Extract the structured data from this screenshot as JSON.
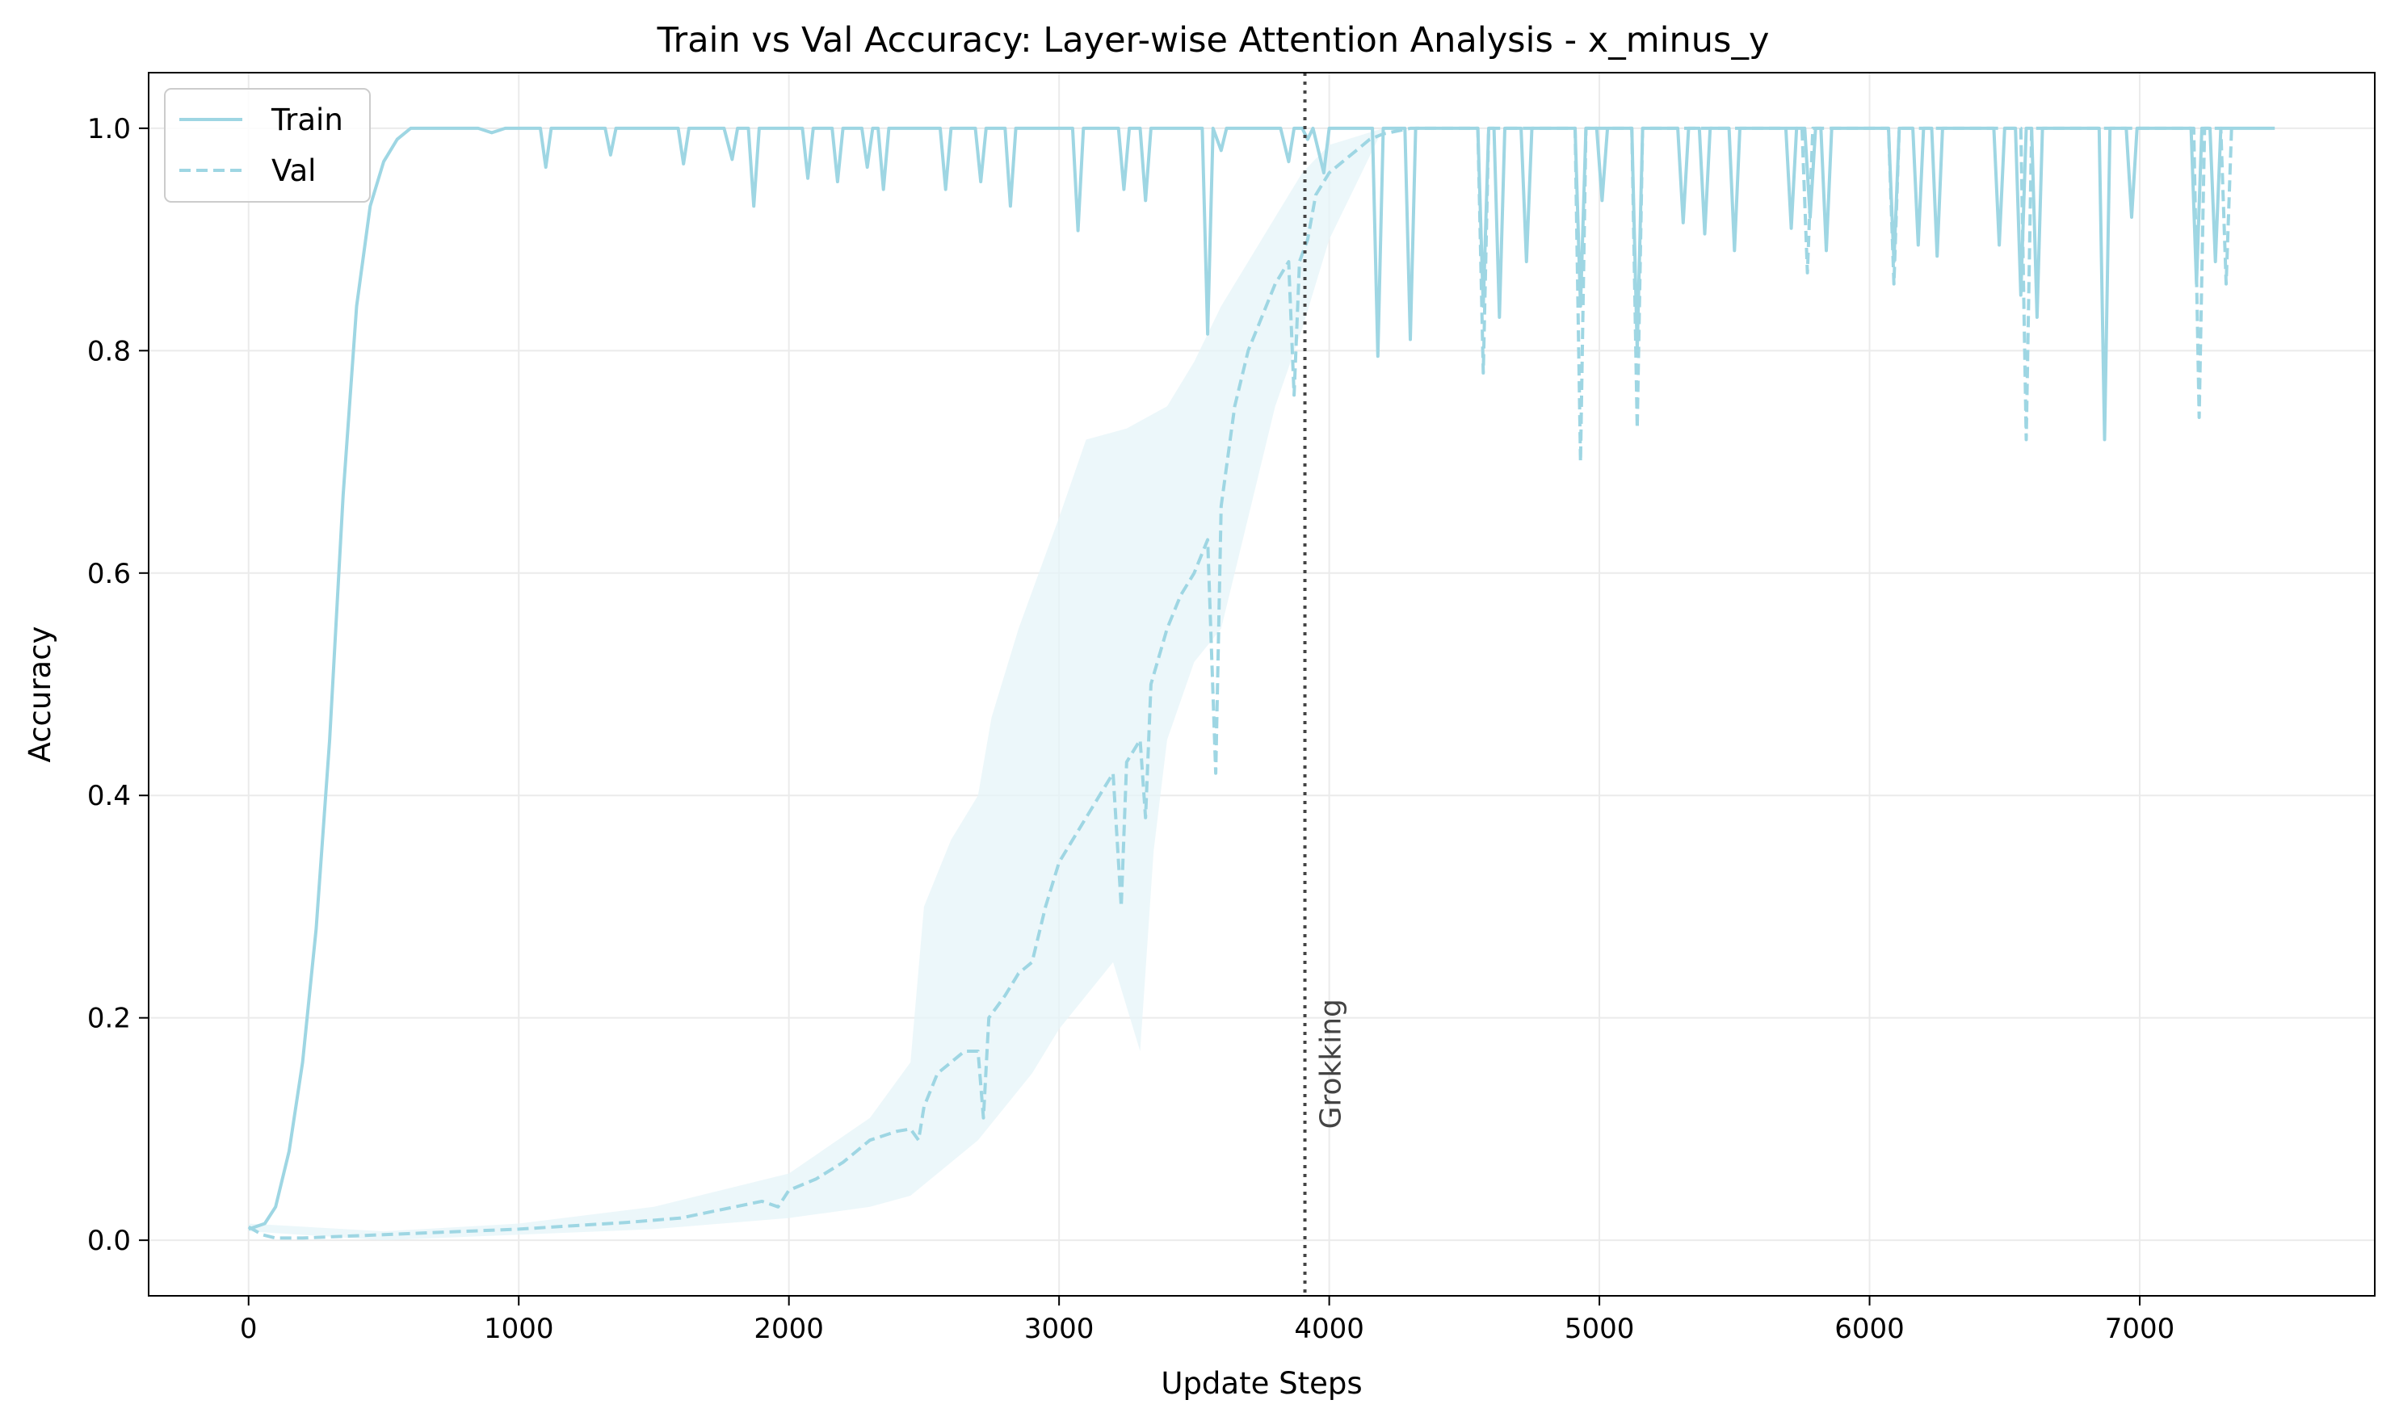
{
  "chart_data": {
    "type": "line",
    "title": "Train vs Val Accuracy: Layer-wise Attention Analysis - x_minus_y",
    "xlabel": "Update Steps",
    "ylabel": "Accuracy",
    "xlim": [
      -370,
      7870
    ],
    "ylim": [
      -0.05,
      1.05
    ],
    "x_ticks": [
      0,
      1000,
      2000,
      3000,
      4000,
      5000,
      6000,
      7000
    ],
    "x_tick_labels": [
      "0",
      "1000",
      "2000",
      "3000",
      "4000",
      "5000",
      "6000",
      "7000"
    ],
    "y_ticks": [
      0.0,
      0.2,
      0.4,
      0.6,
      0.8,
      1.0
    ],
    "y_tick_labels": [
      "0.0",
      "0.2",
      "0.4",
      "0.6",
      "0.8",
      "1.0"
    ],
    "grid": true,
    "legend_position": "top-left",
    "colors": {
      "series": "#9ed6e3",
      "band": "#e6f4f8",
      "annotation": "#444444",
      "grid": "#ebebeb"
    },
    "annotation": {
      "x": 3910,
      "label": "Grokking",
      "style": "dotted"
    },
    "series": [
      {
        "name": "Train",
        "style": "solid",
        "points": [
          [
            0,
            0.01
          ],
          [
            60,
            0.015
          ],
          [
            100,
            0.03
          ],
          [
            150,
            0.08
          ],
          [
            200,
            0.16
          ],
          [
            250,
            0.28
          ],
          [
            300,
            0.45
          ],
          [
            350,
            0.67
          ],
          [
            400,
            0.84
          ],
          [
            450,
            0.93
          ],
          [
            500,
            0.97
          ],
          [
            550,
            0.99
          ],
          [
            600,
            1.0
          ],
          [
            850,
            1.0
          ],
          [
            900,
            0.996
          ],
          [
            950,
            1.0
          ],
          [
            1080,
            1.0
          ],
          [
            1100,
            0.965
          ],
          [
            1120,
            1.0
          ],
          [
            1320,
            1.0
          ],
          [
            1340,
            0.976
          ],
          [
            1360,
            1.0
          ],
          [
            1590,
            1.0
          ],
          [
            1610,
            0.968
          ],
          [
            1630,
            1.0
          ],
          [
            1760,
            1.0
          ],
          [
            1790,
            0.972
          ],
          [
            1810,
            1.0
          ],
          [
            1850,
            1.0
          ],
          [
            1870,
            0.93
          ],
          [
            1890,
            1.0
          ],
          [
            2050,
            1.0
          ],
          [
            2070,
            0.955
          ],
          [
            2090,
            1.0
          ],
          [
            2160,
            1.0
          ],
          [
            2180,
            0.952
          ],
          [
            2200,
            1.0
          ],
          [
            2270,
            1.0
          ],
          [
            2290,
            0.965
          ],
          [
            2310,
            1.0
          ],
          [
            2330,
            1.0
          ],
          [
            2350,
            0.945
          ],
          [
            2370,
            1.0
          ],
          [
            2560,
            1.0
          ],
          [
            2580,
            0.945
          ],
          [
            2600,
            1.0
          ],
          [
            2690,
            1.0
          ],
          [
            2710,
            0.952
          ],
          [
            2730,
            1.0
          ],
          [
            2800,
            1.0
          ],
          [
            2820,
            0.93
          ],
          [
            2840,
            1.0
          ],
          [
            3050,
            1.0
          ],
          [
            3070,
            0.908
          ],
          [
            3090,
            1.0
          ],
          [
            3220,
            1.0
          ],
          [
            3240,
            0.945
          ],
          [
            3260,
            1.0
          ],
          [
            3300,
            1.0
          ],
          [
            3320,
            0.935
          ],
          [
            3340,
            1.0
          ],
          [
            3530,
            1.0
          ],
          [
            3550,
            0.815
          ],
          [
            3570,
            1.0
          ],
          [
            3600,
            0.98
          ],
          [
            3620,
            1.0
          ],
          [
            3820,
            1.0
          ],
          [
            3850,
            0.97
          ],
          [
            3870,
            1.0
          ],
          [
            3900,
            1.0
          ],
          [
            3920,
            0.99
          ],
          [
            3940,
            1.0
          ],
          [
            3980,
            0.96
          ],
          [
            4000,
            1.0
          ],
          [
            4160,
            1.0
          ],
          [
            4180,
            0.795
          ],
          [
            4200,
            1.0
          ],
          [
            4280,
            1.0
          ],
          [
            4300,
            0.81
          ],
          [
            4320,
            1.0
          ],
          [
            4550,
            1.0
          ],
          [
            4570,
            0.84
          ],
          [
            4590,
            1.0
          ],
          [
            4610,
            1.0
          ],
          [
            4630,
            0.83
          ],
          [
            4650,
            1.0
          ],
          [
            4710,
            1.0
          ],
          [
            4730,
            0.88
          ],
          [
            4750,
            1.0
          ],
          [
            4910,
            1.0
          ],
          [
            4930,
            0.84
          ],
          [
            4950,
            1.0
          ],
          [
            4990,
            1.0
          ],
          [
            5010,
            0.935
          ],
          [
            5030,
            1.0
          ],
          [
            5120,
            1.0
          ],
          [
            5140,
            0.8
          ],
          [
            5160,
            1.0
          ],
          [
            5290,
            1.0
          ],
          [
            5310,
            0.915
          ],
          [
            5330,
            1.0
          ],
          [
            5370,
            1.0
          ],
          [
            5390,
            0.905
          ],
          [
            5410,
            1.0
          ],
          [
            5480,
            1.0
          ],
          [
            5500,
            0.89
          ],
          [
            5520,
            1.0
          ],
          [
            5690,
            1.0
          ],
          [
            5710,
            0.91
          ],
          [
            5730,
            1.0
          ],
          [
            5760,
            1.0
          ],
          [
            5780,
            0.92
          ],
          [
            5800,
            1.0
          ],
          [
            5820,
            1.0
          ],
          [
            5840,
            0.89
          ],
          [
            5860,
            1.0
          ],
          [
            6070,
            1.0
          ],
          [
            6090,
            0.88
          ],
          [
            6110,
            1.0
          ],
          [
            6160,
            1.0
          ],
          [
            6180,
            0.895
          ],
          [
            6200,
            1.0
          ],
          [
            6230,
            1.0
          ],
          [
            6250,
            0.885
          ],
          [
            6270,
            1.0
          ],
          [
            6460,
            1.0
          ],
          [
            6480,
            0.895
          ],
          [
            6500,
            1.0
          ],
          [
            6540,
            1.0
          ],
          [
            6560,
            0.85
          ],
          [
            6580,
            1.0
          ],
          [
            6600,
            1.0
          ],
          [
            6620,
            0.83
          ],
          [
            6640,
            1.0
          ],
          [
            6850,
            1.0
          ],
          [
            6870,
            0.72
          ],
          [
            6890,
            1.0
          ],
          [
            6950,
            1.0
          ],
          [
            6970,
            0.92
          ],
          [
            6990,
            1.0
          ],
          [
            7190,
            1.0
          ],
          [
            7210,
            0.86
          ],
          [
            7230,
            1.0
          ],
          [
            7260,
            1.0
          ],
          [
            7280,
            0.88
          ],
          [
            7300,
            1.0
          ],
          [
            7500,
            1.0
          ]
        ]
      },
      {
        "name": "Val",
        "style": "dashed",
        "points": [
          [
            0,
            0.012
          ],
          [
            50,
            0.005
          ],
          [
            100,
            0.002
          ],
          [
            200,
            0.002
          ],
          [
            400,
            0.004
          ],
          [
            600,
            0.006
          ],
          [
            800,
            0.008
          ],
          [
            1000,
            0.01
          ],
          [
            1200,
            0.013
          ],
          [
            1400,
            0.016
          ],
          [
            1600,
            0.02
          ],
          [
            1700,
            0.025
          ],
          [
            1800,
            0.03
          ],
          [
            1900,
            0.035
          ],
          [
            1960,
            0.03
          ],
          [
            2000,
            0.045
          ],
          [
            2100,
            0.055
          ],
          [
            2200,
            0.07
          ],
          [
            2250,
            0.08
          ],
          [
            2300,
            0.09
          ],
          [
            2400,
            0.098
          ],
          [
            2450,
            0.1
          ],
          [
            2480,
            0.09
          ],
          [
            2500,
            0.12
          ],
          [
            2550,
            0.15
          ],
          [
            2600,
            0.16
          ],
          [
            2650,
            0.17
          ],
          [
            2700,
            0.17
          ],
          [
            2720,
            0.11
          ],
          [
            2740,
            0.2
          ],
          [
            2800,
            0.22
          ],
          [
            2850,
            0.24
          ],
          [
            2900,
            0.25
          ],
          [
            2950,
            0.3
          ],
          [
            3000,
            0.34
          ],
          [
            3050,
            0.36
          ],
          [
            3100,
            0.38
          ],
          [
            3150,
            0.4
          ],
          [
            3200,
            0.42
          ],
          [
            3230,
            0.3
          ],
          [
            3250,
            0.43
          ],
          [
            3300,
            0.45
          ],
          [
            3320,
            0.38
          ],
          [
            3340,
            0.5
          ],
          [
            3400,
            0.55
          ],
          [
            3450,
            0.58
          ],
          [
            3500,
            0.6
          ],
          [
            3550,
            0.63
          ],
          [
            3580,
            0.42
          ],
          [
            3600,
            0.66
          ],
          [
            3650,
            0.75
          ],
          [
            3700,
            0.8
          ],
          [
            3750,
            0.83
          ],
          [
            3800,
            0.86
          ],
          [
            3850,
            0.88
          ],
          [
            3870,
            0.76
          ],
          [
            3890,
            0.88
          ],
          [
            3920,
            0.9
          ],
          [
            3950,
            0.94
          ],
          [
            4000,
            0.96
          ],
          [
            4050,
            0.97
          ],
          [
            4100,
            0.98
          ],
          [
            4150,
            0.99
          ],
          [
            4200,
            0.995
          ],
          [
            4300,
            1.0
          ],
          [
            4550,
            1.0
          ],
          [
            4570,
            0.78
          ],
          [
            4590,
            1.0
          ],
          [
            4910,
            1.0
          ],
          [
            4930,
            0.7
          ],
          [
            4950,
            1.0
          ],
          [
            5120,
            1.0
          ],
          [
            5140,
            0.73
          ],
          [
            5160,
            1.0
          ],
          [
            5750,
            1.0
          ],
          [
            5770,
            0.87
          ],
          [
            5790,
            1.0
          ],
          [
            6070,
            1.0
          ],
          [
            6090,
            0.86
          ],
          [
            6110,
            1.0
          ],
          [
            6560,
            1.0
          ],
          [
            6580,
            0.72
          ],
          [
            6600,
            1.0
          ],
          [
            7200,
            1.0
          ],
          [
            7220,
            0.74
          ],
          [
            7240,
            1.0
          ],
          [
            7300,
            1.0
          ],
          [
            7320,
            0.86
          ],
          [
            7340,
            1.0
          ]
        ]
      }
    ],
    "val_band_upper": [
      [
        0,
        0.015
      ],
      [
        500,
        0.008
      ],
      [
        1000,
        0.015
      ],
      [
        1500,
        0.03
      ],
      [
        2000,
        0.06
      ],
      [
        2300,
        0.11
      ],
      [
        2450,
        0.16
      ],
      [
        2500,
        0.3
      ],
      [
        2600,
        0.36
      ],
      [
        2700,
        0.4
      ],
      [
        2750,
        0.47
      ],
      [
        2850,
        0.55
      ],
      [
        3000,
        0.65
      ],
      [
        3100,
        0.72
      ],
      [
        3250,
        0.73
      ],
      [
        3400,
        0.75
      ],
      [
        3500,
        0.79
      ],
      [
        3600,
        0.84
      ],
      [
        3700,
        0.88
      ],
      [
        3800,
        0.92
      ],
      [
        3900,
        0.96
      ],
      [
        4000,
        0.985
      ],
      [
        4200,
        1.0
      ]
    ],
    "val_band_lower": [
      [
        0,
        0.008
      ],
      [
        500,
        0.0
      ],
      [
        1000,
        0.005
      ],
      [
        1500,
        0.01
      ],
      [
        2000,
        0.02
      ],
      [
        2300,
        0.03
      ],
      [
        2450,
        0.04
      ],
      [
        2500,
        0.05
      ],
      [
        2600,
        0.07
      ],
      [
        2700,
        0.09
      ],
      [
        2800,
        0.12
      ],
      [
        2900,
        0.15
      ],
      [
        3000,
        0.19
      ],
      [
        3100,
        0.22
      ],
      [
        3200,
        0.25
      ],
      [
        3300,
        0.17
      ],
      [
        3350,
        0.35
      ],
      [
        3400,
        0.45
      ],
      [
        3500,
        0.52
      ],
      [
        3600,
        0.55
      ],
      [
        3700,
        0.65
      ],
      [
        3800,
        0.75
      ],
      [
        3900,
        0.82
      ],
      [
        4000,
        0.9
      ],
      [
        4100,
        0.95
      ],
      [
        4200,
        1.0
      ]
    ]
  }
}
